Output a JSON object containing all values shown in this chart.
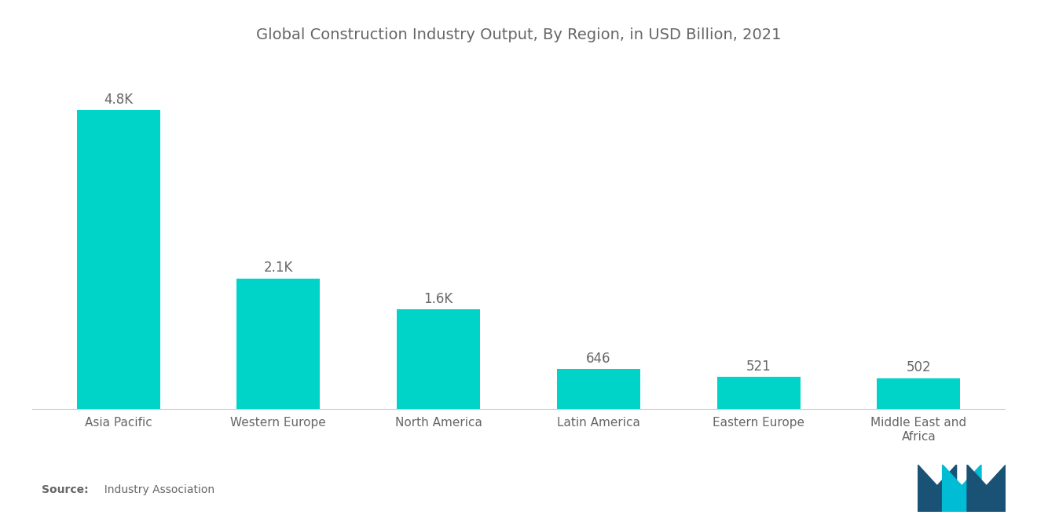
{
  "title": "Global Construction Industry Output, By Region, in USD Billion, 2021",
  "categories": [
    "Asia Pacific",
    "Western Europe",
    "North America",
    "Latin America",
    "Eastern Europe",
    "Middle East and\nAfrica"
  ],
  "values": [
    4800,
    2100,
    1600,
    646,
    521,
    502
  ],
  "value_labels": [
    "4.8K",
    "2.1K",
    "1.6K",
    "646",
    "521",
    "502"
  ],
  "bar_color": "#00D4C8",
  "background_color": "#FFFFFF",
  "ylim": [
    0,
    5500
  ],
  "source_bold": "Source:",
  "source_rest": "  Industry Association",
  "title_color": "#666666",
  "label_color": "#666666",
  "tick_color": "#666666",
  "value_label_fontsize": 12,
  "category_fontsize": 11,
  "title_fontsize": 14,
  "logo_dark": "#1A5276",
  "logo_teal": "#00BCD4"
}
